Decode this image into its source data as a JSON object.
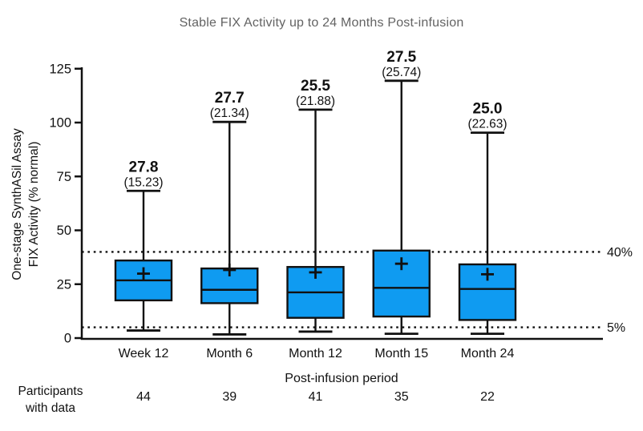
{
  "chart_data": {
    "type": "box",
    "title": "Stable FIX Activity up to 24 Months Post-infusion",
    "ylabel_line1": "One-stage SynthASil Assay",
    "ylabel_line2": "FIX Activity (% normal)",
    "xlabel": "Post-infusion period",
    "ylim": [
      0,
      125
    ],
    "yticks": [
      0,
      25,
      50,
      75,
      100,
      125
    ],
    "grid": "off",
    "reference_lines": [
      {
        "value": 40,
        "label": "40%"
      },
      {
        "value": 5,
        "label": "5%"
      }
    ],
    "groups": [
      {
        "label": "Week 12",
        "annotation": "27.8",
        "annotation_sub": "(15.23)",
        "participants": "44",
        "whisker_low": 3.5,
        "q1": 17.5,
        "median": 26.8,
        "q3": 36.0,
        "whisker_high": 68.3,
        "mean_marker": 29.9
      },
      {
        "label": "Month 6",
        "annotation": "27.7",
        "annotation_sub": "(21.34)",
        "participants": "39",
        "whisker_low": 1.7,
        "q1": 16.2,
        "median": 22.4,
        "q3": 32.3,
        "whisker_high": 100.3,
        "mean_marker": 31.6
      },
      {
        "label": "Month 12",
        "annotation": "25.5",
        "annotation_sub": "(21.88)",
        "participants": "41",
        "whisker_low": 3.0,
        "q1": 9.4,
        "median": 21.2,
        "q3": 33.0,
        "whisker_high": 106.0,
        "mean_marker": 30.5
      },
      {
        "label": "Month 15",
        "annotation": "27.5",
        "annotation_sub": "(25.74)",
        "participants": "35",
        "whisker_low": 2.0,
        "q1": 10.0,
        "median": 23.3,
        "q3": 40.6,
        "whisker_high": 119.4,
        "mean_marker": 34.5
      },
      {
        "label": "Month 24",
        "annotation": "25.0",
        "annotation_sub": "(22.63)",
        "participants": "22",
        "whisker_low": 2.0,
        "q1": 8.4,
        "median": 22.8,
        "q3": 34.2,
        "whisker_high": 95.3,
        "mean_marker": 29.6
      }
    ],
    "participants_label_line1": "Participants",
    "participants_label_line2": "with data",
    "colors": {
      "box_fill": "#0f9bf1",
      "line": "#111111",
      "title_text": "#636363"
    }
  }
}
